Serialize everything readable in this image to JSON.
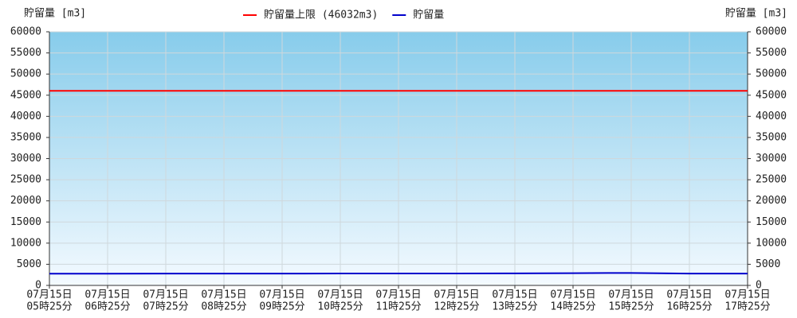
{
  "chart_data": {
    "type": "line",
    "y_label": "貯留量 [m3]",
    "y2_label": "貯留量 [m3]",
    "categories": [
      [
        "07月15日",
        "05時25分"
      ],
      [
        "07月15日",
        "06時25分"
      ],
      [
        "07月15日",
        "07時25分"
      ],
      [
        "07月15日",
        "08時25分"
      ],
      [
        "07月15日",
        "09時25分"
      ],
      [
        "07月15日",
        "10時25分"
      ],
      [
        "07月15日",
        "11時25分"
      ],
      [
        "07月15日",
        "12時25分"
      ],
      [
        "07月15日",
        "13時25分"
      ],
      [
        "07月15日",
        "14時25分"
      ],
      [
        "07月15日",
        "15時25分"
      ],
      [
        "07月15日",
        "16時25分"
      ],
      [
        "07月15日",
        "17時25分"
      ]
    ],
    "series": [
      {
        "name": "貯留量上限 (46032m3)",
        "color": "#ff0000",
        "values": [
          46032,
          46032,
          46032,
          46032,
          46032,
          46032,
          46032,
          46032,
          46032,
          46032,
          46032,
          46032,
          46032
        ]
      },
      {
        "name": "貯留量",
        "color": "#0000cc",
        "values": [
          2780,
          2780,
          2790,
          2800,
          2800,
          2820,
          2810,
          2830,
          2850,
          2900,
          2950,
          2800,
          2800
        ]
      }
    ],
    "ylim": [
      0,
      60000
    ],
    "yticks": [
      0,
      5000,
      10000,
      15000,
      20000,
      25000,
      30000,
      35000,
      40000,
      45000,
      50000,
      55000,
      60000
    ],
    "y2lim": [
      0,
      60000
    ],
    "y2ticks": [
      0,
      5000,
      10000,
      15000,
      20000,
      25000,
      30000,
      35000,
      40000,
      45000,
      50000,
      55000,
      60000
    ],
    "grid": true
  }
}
